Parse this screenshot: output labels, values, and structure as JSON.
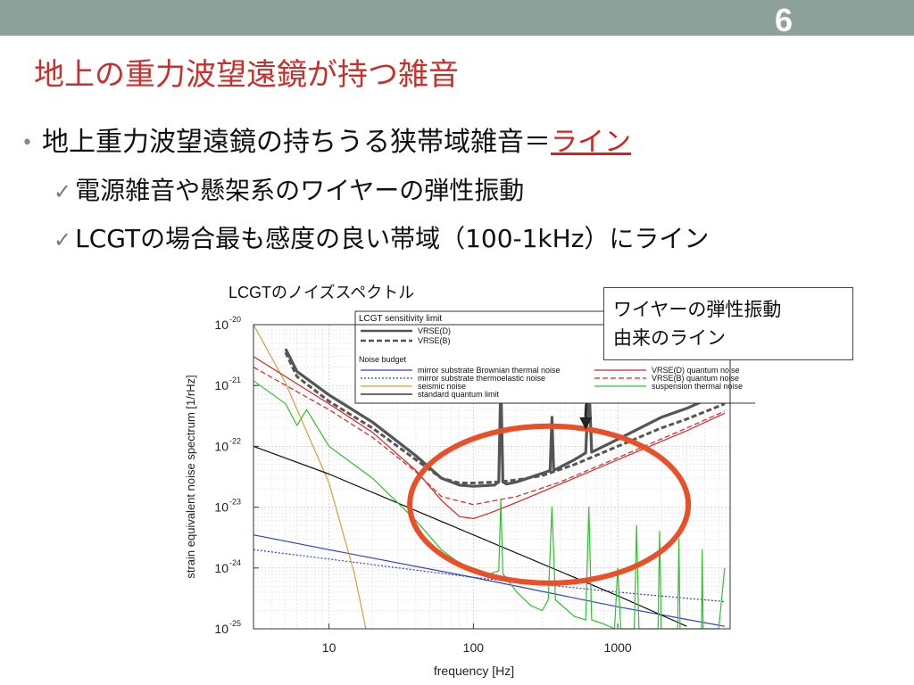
{
  "slide": {
    "number": "6",
    "title": "地上の重力波望遠鏡が持つ雑音",
    "bullet_text": "地上重力波望遠鏡の持ちうる狭帯域雑音＝",
    "bullet_accent": "ライン",
    "sub1": "電源雑音や懸架系のワイヤーの弾性振動",
    "sub2": "LCGTの場合最も感度の良い帯域（100-1kHz）にライン",
    "check_glyph": "✓",
    "bullet_glyph": "•",
    "caption": "LCGTのノイズスペクトル",
    "callout_line1": "ワイヤーの弾性振動",
    "callout_line2": "由来のライン"
  },
  "chart_data": {
    "type": "line",
    "xlabel": "frequency [Hz]",
    "ylabel": "strain equivalent noise spectrum [1/rHz]",
    "xscale": "log",
    "yscale": "log",
    "xlim": [
      3,
      6000
    ],
    "ylim": [
      1e-25,
      1e-20
    ],
    "x_ticks": [
      {
        "value": 10,
        "label": "10"
      },
      {
        "value": 100,
        "label": "100"
      },
      {
        "value": 1000,
        "label": "1000"
      }
    ],
    "y_ticks": [
      {
        "value": 1e-20,
        "base": "10",
        "exp": "-20"
      },
      {
        "value": 1e-21,
        "base": "10",
        "exp": "-21"
      },
      {
        "value": 1e-22,
        "base": "10",
        "exp": "-22"
      },
      {
        "value": 1e-23,
        "base": "10",
        "exp": "-23"
      },
      {
        "value": 1e-24,
        "base": "10",
        "exp": "-24"
      },
      {
        "value": 1e-25,
        "base": "10",
        "exp": "-25"
      }
    ],
    "grid": true,
    "legend": {
      "group1_title": "LCGT sensitivity limit",
      "group2_title": "Noise budget",
      "placement": "top-center"
    },
    "annotation": {
      "ellipse_color": "#e8502a"
    },
    "series": [
      {
        "name": "VRSE(D)",
        "legend_group": 1,
        "color": "#555555",
        "style": "solid",
        "width": 3.2,
        "points": [
          [
            5,
            4e-21
          ],
          [
            6,
            1.7e-21
          ],
          [
            10,
            7e-22
          ],
          [
            20,
            2.5e-22
          ],
          [
            40,
            7e-23
          ],
          [
            60,
            3e-23
          ],
          [
            80,
            2.3e-23
          ],
          [
            100,
            2.2e-23
          ],
          [
            140,
            2.3e-23
          ],
          [
            150,
            2.6e-23
          ],
          [
            155,
            1.3e-21
          ],
          [
            160,
            2.6e-23
          ],
          [
            170,
            2.4e-23
          ],
          [
            200,
            2.6e-23
          ],
          [
            300,
            3.6e-23
          ],
          [
            340,
            4e-23
          ],
          [
            350,
            3e-22
          ],
          [
            360,
            4e-23
          ],
          [
            500,
            6e-23
          ],
          [
            600,
            7.8e-23
          ],
          [
            630,
            1.2e-21
          ],
          [
            660,
            8e-23
          ],
          [
            1000,
            1.3e-22
          ],
          [
            2000,
            3e-22
          ],
          [
            3000,
            4.2e-22
          ],
          [
            5500,
            8e-22
          ]
        ]
      },
      {
        "name": "VRSE(B)",
        "legend_group": 1,
        "color": "#555555",
        "style": "dashed",
        "width": 3,
        "points": [
          [
            5,
            3.5e-21
          ],
          [
            6,
            1.4e-21
          ],
          [
            10,
            5.5e-22
          ],
          [
            20,
            2e-22
          ],
          [
            40,
            6e-23
          ],
          [
            60,
            3e-23
          ],
          [
            80,
            2.5e-23
          ],
          [
            100,
            2.5e-23
          ],
          [
            150,
            2.6e-23
          ],
          [
            200,
            2.8e-23
          ],
          [
            300,
            3.3e-23
          ],
          [
            500,
            5e-23
          ],
          [
            1000,
            1e-22
          ],
          [
            2000,
            2e-22
          ],
          [
            3000,
            2.8e-22
          ],
          [
            5500,
            5e-22
          ]
        ]
      },
      {
        "name": "mirror substrate Brownian thermal noise",
        "legend_group": 2,
        "color": "#2a3fd6",
        "style": "solid",
        "width": 1.2,
        "points": [
          [
            3,
            3.5e-24
          ],
          [
            10,
            2e-24
          ],
          [
            100,
            7e-25
          ],
          [
            1000,
            2.3e-25
          ],
          [
            5500,
            1.1e-25
          ]
        ]
      },
      {
        "name": "mirror substrate thermoelastic noise",
        "legend_group": 2,
        "color": "#2a3fd6",
        "style": "dotted",
        "width": 1.2,
        "points": [
          [
            3,
            2e-24
          ],
          [
            10,
            1.4e-24
          ],
          [
            100,
            7e-25
          ],
          [
            1000,
            4e-25
          ],
          [
            5500,
            2.8e-25
          ]
        ]
      },
      {
        "name": "seismic noise",
        "legend_group": 2,
        "color": "#d4a03a",
        "style": "solid",
        "width": 1.2,
        "points": [
          [
            3,
            1e-20
          ],
          [
            5,
            1.1e-21
          ],
          [
            10,
            2.5e-23
          ],
          [
            15,
            8e-25
          ],
          [
            18,
            1e-25
          ]
        ]
      },
      {
        "name": "standard quantum limit",
        "legend_group": 2,
        "color": "#111111",
        "style": "solid",
        "width": 1.2,
        "points": [
          [
            3,
            1e-22
          ],
          [
            10,
            3.5e-23
          ],
          [
            100,
            3.5e-24
          ],
          [
            1000,
            3.5e-25
          ],
          [
            3000,
            1.1e-25
          ]
        ]
      },
      {
        "name": "VRSE(D) quantum noise",
        "legend_group": 2,
        "color": "#e02020",
        "style": "solid",
        "width": 1.2,
        "points": [
          [
            3,
            3e-21
          ],
          [
            10,
            5e-22
          ],
          [
            20,
            1.7e-22
          ],
          [
            40,
            4e-23
          ],
          [
            60,
            1.3e-23
          ],
          [
            80,
            7e-24
          ],
          [
            100,
            6.5e-24
          ],
          [
            130,
            8e-24
          ],
          [
            200,
            1.2e-23
          ],
          [
            400,
            2.4e-23
          ],
          [
            1000,
            6e-23
          ],
          [
            3000,
            1.8e-22
          ],
          [
            5500,
            3.5e-22
          ]
        ]
      },
      {
        "name": "VRSE(B) quantum noise",
        "legend_group": 2,
        "color": "#e02020",
        "style": "dashed",
        "width": 1.2,
        "points": [
          [
            3,
            2e-21
          ],
          [
            10,
            4e-22
          ],
          [
            20,
            1.4e-22
          ],
          [
            40,
            3.8e-23
          ],
          [
            60,
            1.5e-23
          ],
          [
            100,
            1.1e-23
          ],
          [
            200,
            1.5e-23
          ],
          [
            400,
            2.6e-23
          ],
          [
            1000,
            6.5e-23
          ],
          [
            3000,
            2e-22
          ],
          [
            5500,
            3.8e-22
          ]
        ]
      },
      {
        "name": "suspension thermal noise",
        "legend_group": 2,
        "color": "#30c030",
        "style": "solid",
        "width": 1.2,
        "points": [
          [
            3,
            1.2e-21
          ],
          [
            5,
            5e-22
          ],
          [
            6,
            2.2e-22
          ],
          [
            7,
            4e-22
          ],
          [
            10,
            1e-22
          ],
          [
            20,
            3e-23
          ],
          [
            40,
            6e-24
          ],
          [
            60,
            2e-24
          ],
          [
            80,
            1.2e-24
          ],
          [
            100,
            1e-24
          ],
          [
            130,
            8e-25
          ],
          [
            150,
            9e-25
          ],
          [
            155,
            1.3e-23
          ],
          [
            160,
            8e-25
          ],
          [
            200,
            4e-25
          ],
          [
            250,
            2.4e-25
          ],
          [
            300,
            2e-25
          ],
          [
            330,
            3e-25
          ],
          [
            350,
            1e-23
          ],
          [
            370,
            3e-25
          ],
          [
            500,
            1.6e-25
          ],
          [
            600,
            1.4e-25
          ],
          [
            630,
            1e-23
          ],
          [
            660,
            1.4e-25
          ],
          [
            800,
            1.2e-25
          ],
          [
            950,
            1e-25
          ],
          [
            1000,
            1e-24
          ],
          [
            1050,
            1e-25
          ],
          [
            1300,
            1e-25
          ],
          [
            1350,
            5e-24
          ],
          [
            1400,
            1e-25
          ],
          [
            1900,
            1e-25
          ],
          [
            1950,
            4e-24
          ],
          [
            2000,
            1e-25
          ],
          [
            2600,
            1e-25
          ],
          [
            2650,
            3e-24
          ],
          [
            2700,
            1e-25
          ],
          [
            3800,
            1e-25
          ],
          [
            3850,
            2e-24
          ],
          [
            3900,
            1e-25
          ],
          [
            5000,
            1e-25
          ],
          [
            5500,
            1e-24
          ]
        ]
      }
    ]
  }
}
